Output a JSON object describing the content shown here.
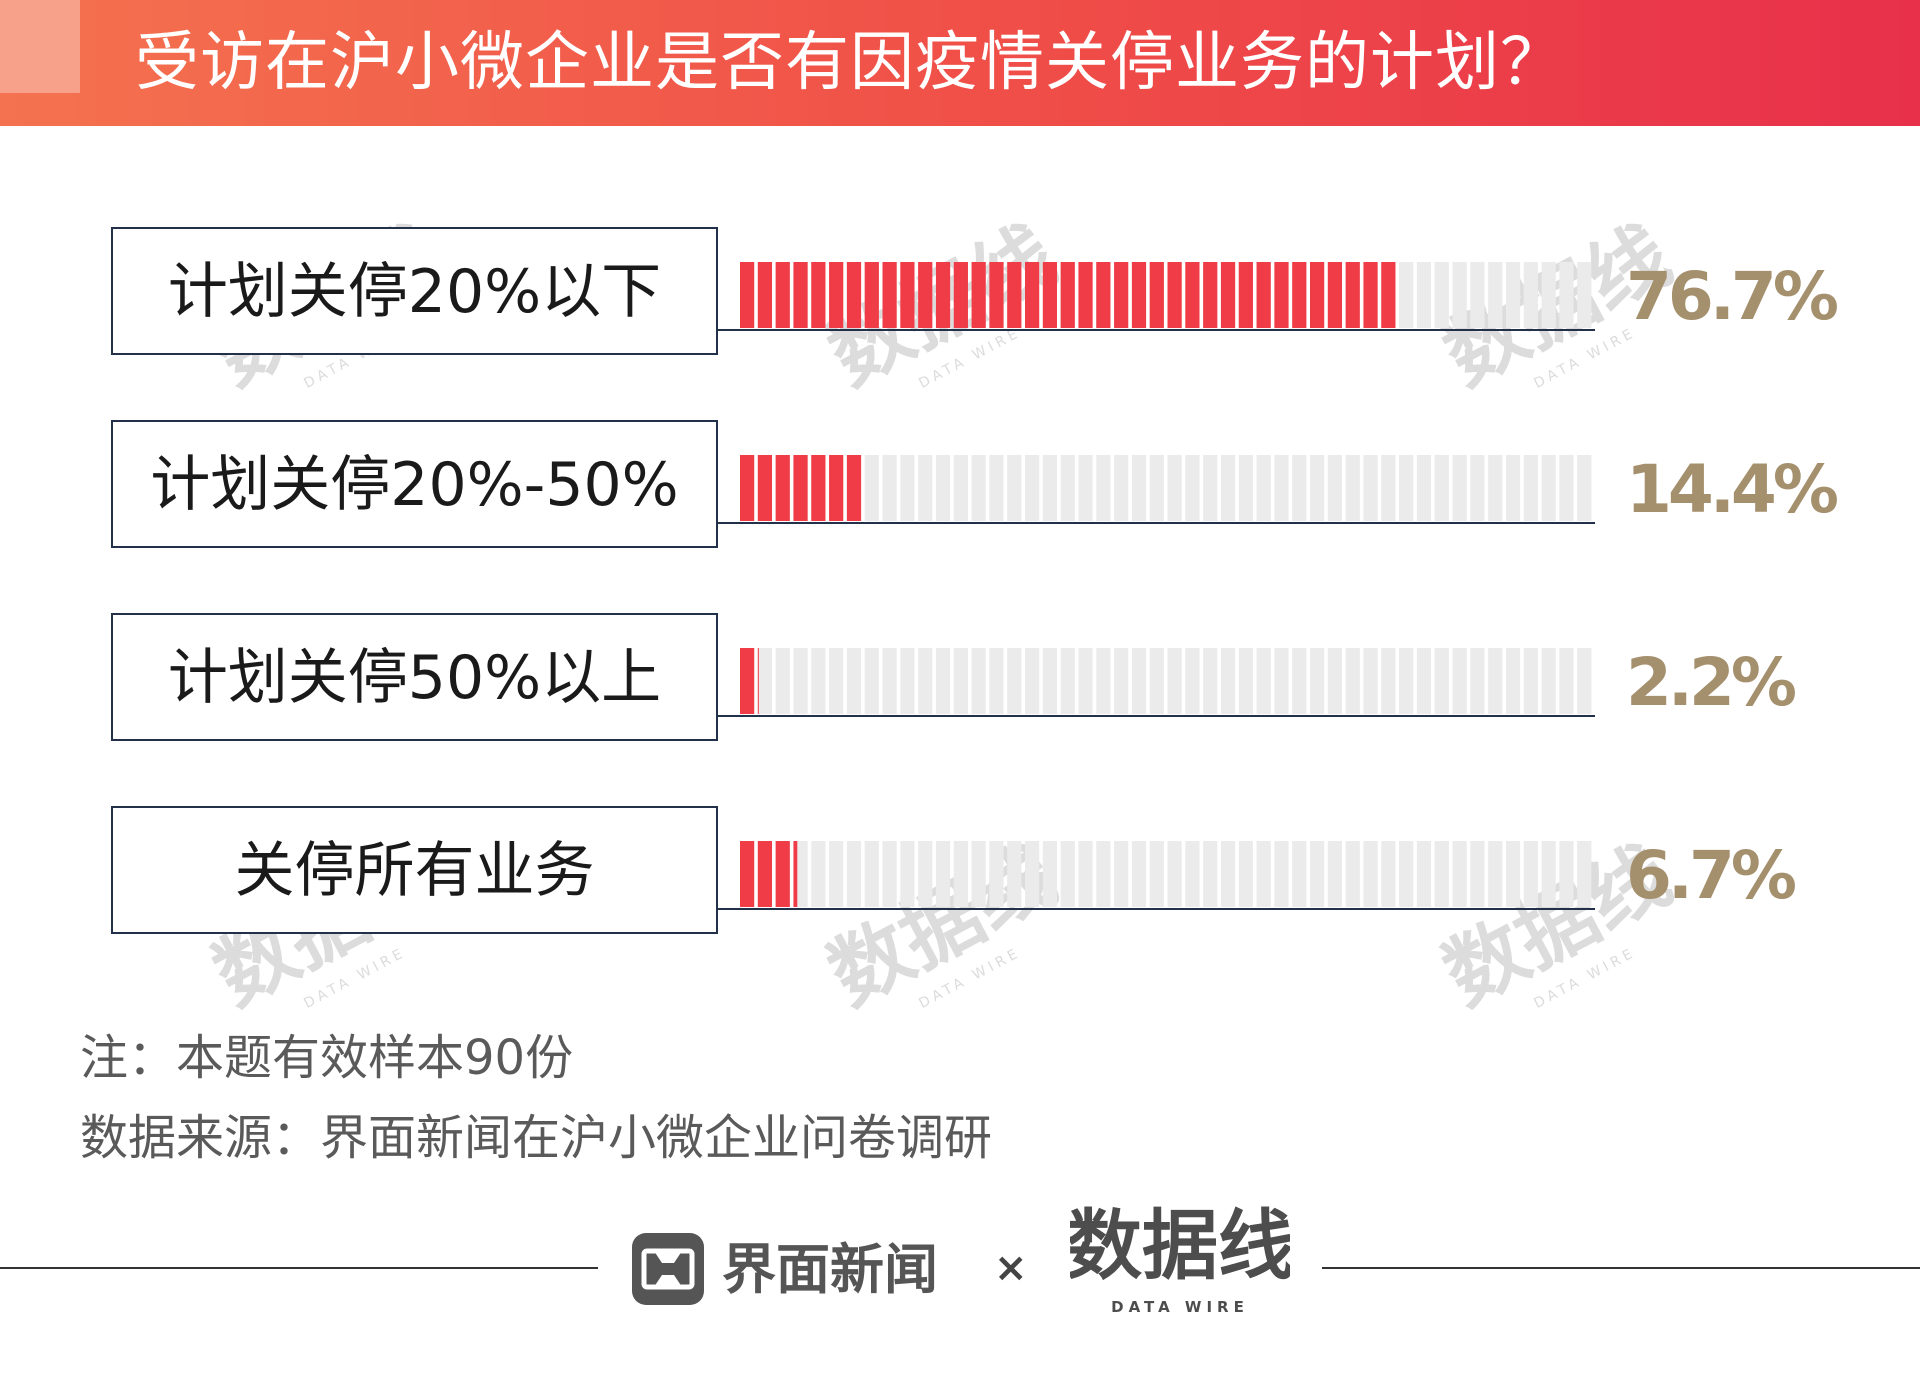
{
  "header": {
    "title": "受访在沪小微企业是否有因疫情关停业务的计划？"
  },
  "chart_data": {
    "type": "bar",
    "orientation": "horizontal",
    "title": "受访在沪小微企业是否有因疫情关停业务的计划？",
    "categories": [
      "计划关停20%以下",
      "计划关停20%-50%",
      "计划关停50%以上",
      "关停所有业务"
    ],
    "values": [
      76.7,
      14.4,
      2.2,
      6.7
    ],
    "value_labels": [
      "76.7%",
      "14.4%",
      "2.2%",
      "6.7%"
    ],
    "unit": "%",
    "xlim": [
      0,
      100
    ],
    "bar_style": "segmented",
    "colors": {
      "fill": "#f03c46",
      "empty": "#ebebeb",
      "value_text": "#a5906e",
      "label_text": "#1a1a1a"
    }
  },
  "notes": {
    "note": "注：本题有效样本90份",
    "source": "数据来源：界面新闻在沪小微企业问卷调研"
  },
  "footer": {
    "brand1": "界面新闻",
    "brand1_icon": "jiemian-logo-icon",
    "separator": "×",
    "brand2_text": "数据线",
    "brand2_sub": "DATA WIRE"
  },
  "watermark": {
    "text": "数据线",
    "sub": "DATA WIRE"
  }
}
